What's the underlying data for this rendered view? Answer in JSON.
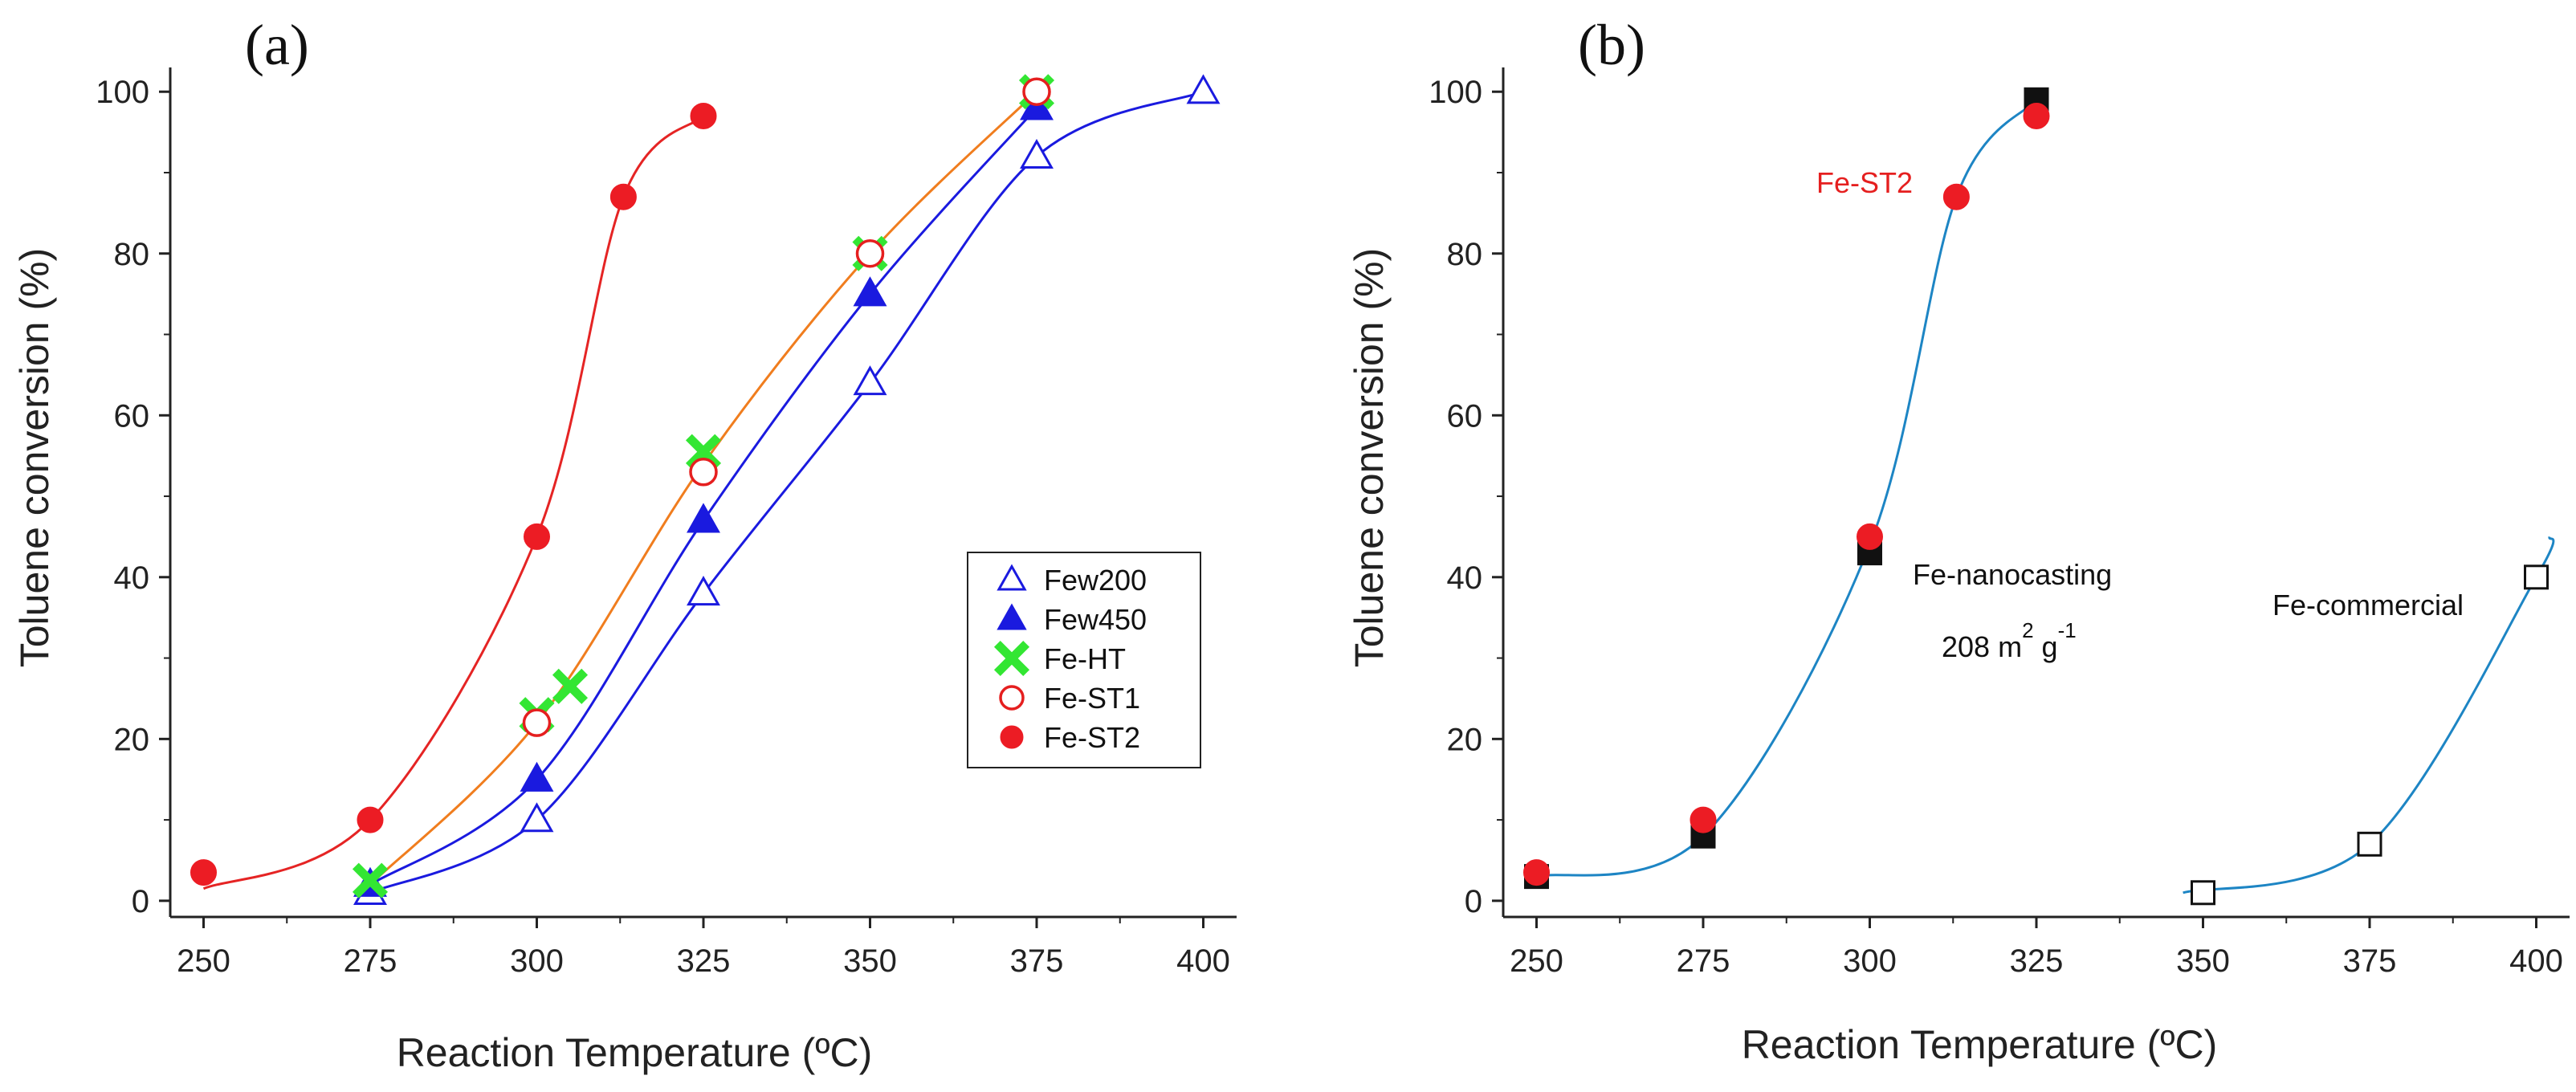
{
  "chart_data": [
    {
      "type": "line",
      "panel_label": "(a)",
      "title": "",
      "xlabel": "Reaction Temperature (ºC)",
      "ylabel": "Toluene conversion (%)",
      "xlim": [
        245,
        405
      ],
      "ylim": [
        -2,
        103
      ],
      "xticks": [
        250,
        275,
        300,
        325,
        350,
        375,
        400
      ],
      "yticks": [
        0,
        20,
        40,
        60,
        80,
        100
      ],
      "legend_position": "center-right",
      "series": [
        {
          "name": "Few200",
          "marker": "open-triangle",
          "color": "#1a1adf",
          "curve_color": "#1a1adf",
          "x": [
            275,
            300,
            325,
            350,
            375,
            400
          ],
          "y": [
            1,
            10,
            38,
            64,
            92,
            100
          ]
        },
        {
          "name": "Few450",
          "marker": "filled-triangle",
          "color": "#1a1adf",
          "curve_color": "#1a1adf",
          "x": [
            275,
            300,
            325,
            350,
            375
          ],
          "y": [
            2,
            15,
            47,
            75,
            98
          ]
        },
        {
          "name": "Fe-HT",
          "marker": "cross",
          "color": "#33e633",
          "curve_color": "#f07d1e",
          "x": [
            275,
            300,
            305,
            325,
            350,
            375
          ],
          "y": [
            2.5,
            23,
            26.5,
            55.5,
            80,
            100
          ]
        },
        {
          "name": "Fe-ST1",
          "marker": "open-circle",
          "color": "#e51f1f",
          "curve_color": "#f07d1e",
          "x": [
            300,
            325,
            350,
            375
          ],
          "y": [
            22,
            53,
            80,
            100
          ]
        },
        {
          "name": "Fe-ST2",
          "marker": "filled-circle",
          "color": "#ec1c24",
          "curve_color": "#e52424",
          "x": [
            250,
            275,
            300,
            313,
            325
          ],
          "y": [
            3.5,
            10,
            45,
            87,
            97
          ]
        }
      ]
    },
    {
      "type": "line",
      "panel_label": "(b)",
      "title": "",
      "xlabel": "Reaction Temperature (ºC)",
      "ylabel": "Toluene conversion (%)",
      "xlim": [
        245,
        405
      ],
      "ylim": [
        -2,
        103
      ],
      "xticks": [
        250,
        275,
        300,
        325,
        350,
        375,
        400
      ],
      "yticks": [
        0,
        20,
        40,
        60,
        80,
        100
      ],
      "series": [
        {
          "name": "Fe-nanocasting",
          "marker": "filled-square",
          "color": "#111111",
          "curve_color": "#1d85c4",
          "x": [
            250,
            275,
            300,
            325
          ],
          "y": [
            3,
            8,
            43,
            99
          ]
        },
        {
          "name": "Fe-ST2",
          "marker": "filled-circle",
          "color": "#ec1c24",
          "curve_color": "#1d85c4",
          "x": [
            250,
            275,
            300,
            313,
            325
          ],
          "y": [
            3.5,
            10,
            45,
            87,
            97
          ]
        },
        {
          "name": "Fe-commercial",
          "marker": "open-square",
          "color": "#111111",
          "curve_color": "#1d85c4",
          "x": [
            350,
            375,
            400
          ],
          "y": [
            1,
            7,
            40
          ]
        }
      ],
      "annotations": [
        {
          "text": "Fe-ST2",
          "color": "#e51f1f"
        },
        {
          "text": "Fe-nanocasting",
          "color": "#111111"
        },
        {
          "text": "208 m",
          "sup1": "2",
          "mid": " g",
          "sup2": "-1",
          "color": "#111111"
        },
        {
          "text": "Fe-commercial",
          "color": "#111111"
        }
      ]
    }
  ]
}
